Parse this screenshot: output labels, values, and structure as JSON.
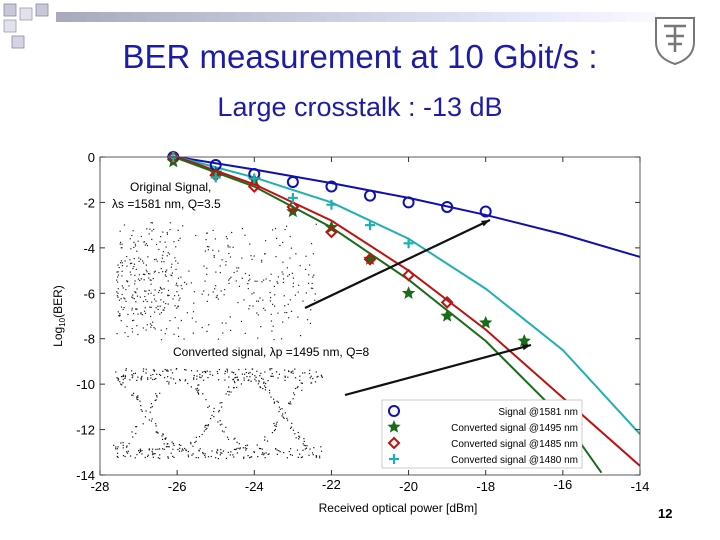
{
  "slide": {
    "title": "BER measurement at 10 Gbit/s :",
    "subtitle": "Large crosstalk : -13 dB",
    "page_number": "12"
  },
  "chart_data": {
    "type": "scatter",
    "xlabel": "Received optical power [dBm]",
    "ylabel": "Log10(BER)",
    "xlim": [
      -28,
      -14
    ],
    "ylim": [
      -14,
      0
    ],
    "x_ticks": [
      -28,
      -26,
      -24,
      -22,
      -20,
      -18,
      -16,
      -14
    ],
    "y_ticks": [
      0,
      -2,
      -4,
      -6,
      -8,
      -10,
      -12,
      -14
    ],
    "legend_position": "bottom-right",
    "series": [
      {
        "name": "Signal @1581 nm",
        "marker": "circle",
        "color": "#1010b0",
        "x": [
          -26.1,
          -25.0,
          -24.0,
          -23.0,
          -22.0,
          -21.0,
          -20.0,
          -19.0,
          -18.0
        ],
        "y": [
          0.0,
          -0.35,
          -0.75,
          -1.1,
          -1.3,
          -1.7,
          -2.0,
          -2.2,
          -2.4
        ]
      },
      {
        "name": "Converted signal @1495 nm",
        "marker": "star",
        "color": "#1a6b1a",
        "x": [
          -26.1,
          -25.0,
          -24.0,
          -23.0,
          -22.0,
          -21.0,
          -20.0,
          -19.0,
          -18.0,
          -17.0
        ],
        "y": [
          -0.2,
          -0.7,
          -1.0,
          -2.4,
          -3.1,
          -4.5,
          -6.0,
          -7.0,
          -7.3,
          -8.1
        ]
      },
      {
        "name": "Converted signal @1485 nm",
        "marker": "diamond",
        "color": "#c01010",
        "x": [
          -26.1,
          -25.0,
          -24.0,
          -23.0,
          -22.0,
          -21.0,
          -20.0,
          -19.0
        ],
        "y": [
          0.0,
          -0.8,
          -1.3,
          -2.2,
          -3.3,
          -4.5,
          -5.2,
          -6.4
        ]
      },
      {
        "name": "Converted signal @1480 nm",
        "marker": "plus",
        "color": "#20b0b0",
        "x": [
          -26.1,
          -25.0,
          -24.0,
          -23.0,
          -22.0,
          -21.0,
          -20.0
        ],
        "y": [
          0.0,
          -0.9,
          -0.95,
          -1.8,
          -2.1,
          -3.0,
          -3.8
        ]
      }
    ],
    "fit_curves": [
      {
        "color": "#1010b0",
        "x": [
          -26,
          -24,
          -22,
          -20,
          -18,
          -16,
          -14
        ],
        "y": [
          0.0,
          -0.55,
          -1.15,
          -1.8,
          -2.55,
          -3.4,
          -4.4
        ]
      },
      {
        "color": "#20b0b0",
        "x": [
          -26,
          -24,
          -22,
          -20,
          -18,
          -16,
          -14
        ],
        "y": [
          0.0,
          -0.9,
          -2.0,
          -3.6,
          -5.8,
          -8.5,
          -12.2
        ]
      },
      {
        "color": "#c01010",
        "x": [
          -26,
          -24,
          -22,
          -20,
          -18,
          -16,
          -14
        ],
        "y": [
          0.0,
          -1.2,
          -2.8,
          -5.0,
          -7.6,
          -10.6,
          -13.6
        ]
      },
      {
        "color": "#1a6b1a",
        "x": [
          -26,
          -24,
          -22,
          -20,
          -18,
          -16,
          -15
        ],
        "y": [
          -0.05,
          -1.3,
          -3.1,
          -5.4,
          -8.1,
          -11.5,
          -13.9
        ]
      }
    ],
    "annotations": [
      {
        "text_line1": "Original Signal,",
        "text_line2": "λs =1581 nm, Q=3.5"
      },
      {
        "text": "Converted signal, λp =1495 nm, Q=8"
      }
    ]
  }
}
